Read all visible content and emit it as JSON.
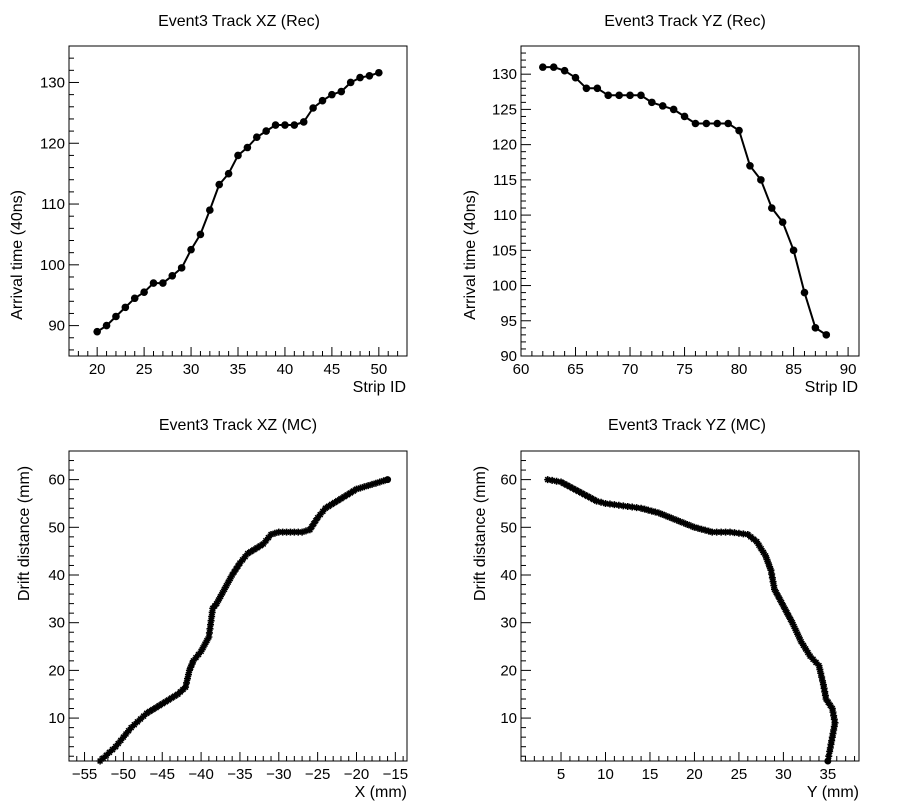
{
  "chart_data": [
    {
      "type": "line",
      "title": "Event3 Track XZ (Rec)",
      "xlabel": "Strip ID",
      "ylabel": "Arrival time (40ns)",
      "xlim": [
        17,
        53
      ],
      "ylim": [
        85,
        136
      ],
      "xticks": [
        20,
        25,
        30,
        35,
        40,
        45,
        50
      ],
      "yticks": [
        90,
        100,
        110,
        120,
        130
      ],
      "marker": "dot",
      "series": [
        {
          "x": [
            20,
            21,
            22,
            23,
            24,
            25,
            26,
            27,
            28,
            29,
            30,
            31,
            32,
            33,
            34,
            35,
            36,
            37,
            38,
            39,
            40,
            41,
            42,
            43,
            44,
            45,
            46,
            47,
            48,
            49,
            50
          ],
          "y": [
            89,
            90,
            91.5,
            93,
            94.5,
            95.5,
            97,
            97,
            98.2,
            99.5,
            102.5,
            105,
            109,
            113.2,
            115,
            118,
            119.3,
            121,
            122,
            123,
            123,
            123,
            123.5,
            125.8,
            127,
            128,
            128.5,
            130,
            130.8,
            131.1,
            131.6
          ]
        }
      ]
    },
    {
      "type": "line",
      "title": "Event3 Track YZ (Rec)",
      "xlabel": "Strip ID",
      "ylabel": "Arrival time (40ns)",
      "xlim": [
        60,
        91
      ],
      "ylim": [
        90,
        134
      ],
      "xticks": [
        60,
        65,
        70,
        75,
        80,
        85,
        90
      ],
      "yticks": [
        90,
        95,
        100,
        105,
        110,
        115,
        120,
        125,
        130
      ],
      "marker": "dot",
      "series": [
        {
          "x": [
            62,
            63,
            64,
            65,
            66,
            67,
            68,
            69,
            70,
            71,
            72,
            73,
            74,
            75,
            76,
            77,
            78,
            79,
            80,
            81,
            82,
            83,
            84,
            85,
            86,
            87,
            88
          ],
          "y": [
            131,
            131,
            130.5,
            129.5,
            128,
            128,
            127,
            127,
            127,
            127,
            126,
            125.5,
            125,
            124,
            123,
            123,
            123,
            123,
            122,
            117,
            115,
            111,
            109,
            105,
            99,
            94,
            93
          ]
        }
      ]
    },
    {
      "type": "line",
      "title": "Event3 Track XZ (MC)",
      "xlabel": "X (mm)",
      "ylabel": "Drift distance (mm)",
      "xlim": [
        -57,
        -13.5
      ],
      "ylim": [
        1,
        66
      ],
      "xticks": [
        -55,
        -50,
        -45,
        -40,
        -35,
        -30,
        -25,
        -20,
        -15
      ],
      "yticks": [
        10,
        20,
        30,
        40,
        50,
        60
      ],
      "marker": "star",
      "series": [
        {
          "x": [
            -53,
            -51,
            -49,
            -47,
            -45,
            -43,
            -42,
            -41.5,
            -41,
            -40,
            -39,
            -38.5,
            -38,
            -37,
            -36,
            -35,
            -34,
            -32,
            -31,
            -30,
            -29,
            -28,
            -27,
            -26,
            -25,
            -24,
            -22,
            -20,
            -18,
            -16
          ],
          "y": [
            1,
            4,
            8,
            11,
            13,
            15,
            16.5,
            20,
            22,
            24,
            27,
            33,
            34,
            37,
            40,
            42.5,
            44.5,
            46.5,
            48.5,
            49,
            49,
            49,
            49,
            49.5,
            52,
            54,
            56,
            58,
            59,
            60
          ]
        }
      ]
    },
    {
      "type": "line",
      "title": "Event3 Track YZ (MC)",
      "xlabel": "Y (mm)",
      "ylabel": "Drift distance (mm)",
      "xlim": [
        0.5,
        38.5
      ],
      "ylim": [
        1,
        66
      ],
      "xticks": [
        5,
        10,
        15,
        20,
        25,
        30,
        35
      ],
      "yticks": [
        10,
        20,
        30,
        40,
        50,
        60
      ],
      "marker": "star",
      "series": [
        {
          "x": [
            3.5,
            5,
            6,
            7,
            8,
            9,
            10,
            12,
            14,
            16,
            18,
            20,
            22,
            24,
            26,
            27,
            28,
            28.6,
            29,
            30,
            31,
            32,
            33,
            34,
            34.5,
            34.8,
            35.5,
            35.8,
            35.5,
            35.2,
            35
          ],
          "y": [
            60,
            59.5,
            58.5,
            57.5,
            56.5,
            55.5,
            55,
            54.5,
            54,
            53,
            51.5,
            50,
            49,
            49,
            48.5,
            47,
            44,
            41,
            37,
            33.5,
            30,
            26,
            23,
            21,
            17,
            14,
            12,
            9,
            6,
            3,
            1
          ]
        }
      ]
    }
  ]
}
